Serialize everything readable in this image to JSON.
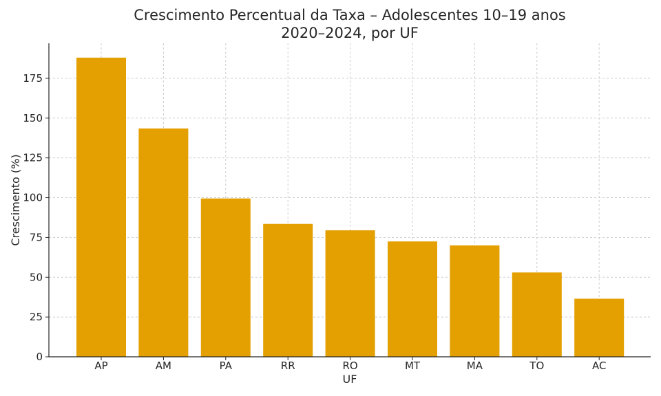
{
  "chart_data": {
    "type": "bar",
    "title_line1": "Crescimento Percentual da Taxa – Adolescentes 10–19 anos",
    "title_line2": "2020–2024, por UF",
    "xlabel": "UF",
    "ylabel": "Crescimento (%)",
    "categories": [
      "AP",
      "AM",
      "PA",
      "RR",
      "RO",
      "MT",
      "MA",
      "TO",
      "AC"
    ],
    "values": [
      188,
      143.5,
      99.5,
      83.5,
      79.5,
      72.5,
      70,
      53,
      36.5
    ],
    "ylim": [
      0,
      197
    ],
    "yticks": [
      0,
      25,
      50,
      75,
      100,
      125,
      150,
      175
    ],
    "grid": true,
    "bar_color": "#E3A000",
    "grid_color": "#cccccc"
  }
}
